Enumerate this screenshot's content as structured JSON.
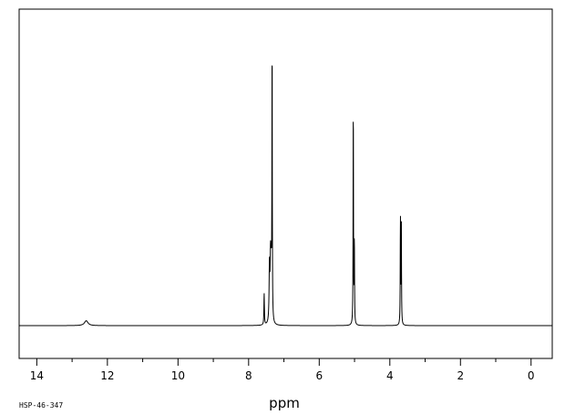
{
  "sample_id": "HSP-46-347",
  "chart_data": {
    "type": "line",
    "title": "",
    "xlabel": "ppm",
    "ylabel": "",
    "x_reversed": true,
    "xlim": [
      14.5,
      -0.6
    ],
    "ylim": [
      -0.02,
      1.0
    ],
    "x_ticks": [
      14,
      12,
      10,
      8,
      6,
      4,
      2,
      0
    ],
    "x_minor_step": 1,
    "grid": false,
    "legend": "none",
    "series": [
      {
        "peaks": [
          {
            "ppm": 12.6,
            "height": 0.017,
            "width": 0.06
          },
          {
            "ppm": 7.56,
            "height": 0.11,
            "width": 0.008
          },
          {
            "ppm": 7.41,
            "height": 0.195,
            "width": 0.012
          },
          {
            "ppm": 7.38,
            "height": 0.205,
            "width": 0.012
          },
          {
            "ppm": 7.36,
            "height": 0.17,
            "width": 0.012
          },
          {
            "ppm": 7.335,
            "height": 0.995,
            "width": 0.006
          },
          {
            "ppm": 5.035,
            "height": 0.8,
            "width": 0.006
          },
          {
            "ppm": 5.005,
            "height": 0.3,
            "width": 0.006
          },
          {
            "ppm": 3.7,
            "height": 0.38,
            "width": 0.006
          },
          {
            "ppm": 3.675,
            "height": 0.37,
            "width": 0.006
          }
        ]
      }
    ]
  }
}
